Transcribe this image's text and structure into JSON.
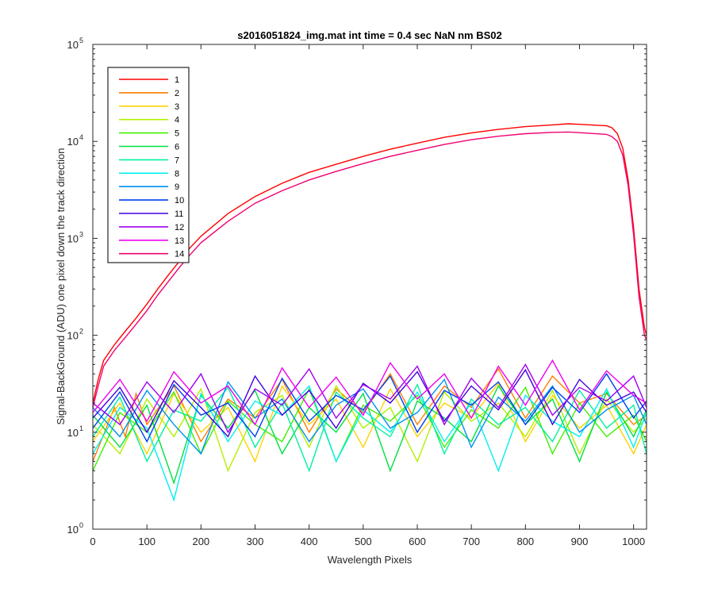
{
  "chart_data": {
    "type": "line",
    "title": "s2016051824_img.mat int time = 0.4 sec  NaN nm BS02",
    "xlabel": "Wavelength Pixels",
    "ylabel": "Signal-BackGround (ADU) one pixel down the track direction",
    "xlim": [
      0,
      1024
    ],
    "ylim": [
      1,
      100000
    ],
    "yscale": "log",
    "grid": false,
    "legend_position": "top-left",
    "x_ticks": [
      0,
      100,
      200,
      300,
      400,
      500,
      600,
      700,
      800,
      900,
      1000
    ],
    "y_ticks": [
      {
        "value": 1,
        "base": "10",
        "exp": "0"
      },
      {
        "value": 10,
        "base": "10",
        "exp": "1"
      },
      {
        "value": 100,
        "base": "10",
        "exp": "2"
      },
      {
        "value": 1000,
        "base": "10",
        "exp": "3"
      },
      {
        "value": 10000,
        "base": "10",
        "exp": "4"
      },
      {
        "value": 100000,
        "base": "10",
        "exp": "5"
      }
    ],
    "series": [
      {
        "name": "1",
        "color": "#ff0000",
        "x": [
          0,
          10,
          20,
          40,
          60,
          80,
          100,
          120,
          140,
          160,
          180,
          200,
          250,
          300,
          350,
          400,
          450,
          500,
          550,
          600,
          650,
          700,
          750,
          800,
          850,
          880,
          900,
          950,
          960,
          970,
          980,
          990,
          1000,
          1010,
          1020,
          1024
        ],
        "y": [
          20,
          35,
          55,
          80,
          110,
          150,
          210,
          300,
          420,
          580,
          800,
          1050,
          1800,
          2700,
          3700,
          4800,
          5800,
          7000,
          8300,
          9600,
          11000,
          12200,
          13300,
          14200,
          14800,
          15200,
          15000,
          14500,
          13800,
          12000,
          8500,
          4000,
          1300,
          300,
          120,
          100
        ]
      },
      {
        "name": "2",
        "color": "#ff7f00",
        "x": [
          0,
          40,
          60,
          80,
          100,
          150,
          200,
          250,
          300,
          350,
          400,
          450,
          500,
          550,
          600,
          650,
          700,
          750,
          800,
          850,
          900,
          950,
          1000,
          1024
        ],
        "y": [
          5,
          18,
          9,
          25,
          12,
          30,
          8,
          22,
          14,
          35,
          10,
          28,
          16,
          40,
          12,
          30,
          18,
          45,
          14,
          38,
          20,
          25,
          12,
          15
        ]
      },
      {
        "name": "3",
        "color": "#ffd200",
        "x": [
          0,
          50,
          100,
          150,
          200,
          250,
          300,
          350,
          400,
          450,
          500,
          550,
          600,
          650,
          700,
          750,
          800,
          850,
          900,
          950,
          1000,
          1024
        ],
        "y": [
          8,
          20,
          6,
          25,
          10,
          18,
          5,
          30,
          12,
          22,
          7,
          28,
          9,
          20,
          14,
          32,
          8,
          24,
          11,
          19,
          6,
          12
        ]
      },
      {
        "name": "4",
        "color": "#b2f000",
        "x": [
          0,
          50,
          100,
          150,
          200,
          250,
          300,
          350,
          400,
          450,
          500,
          550,
          600,
          650,
          700,
          750,
          800,
          850,
          900,
          950,
          1000,
          1024
        ],
        "y": [
          12,
          6,
          22,
          9,
          28,
          4,
          16,
          24,
          7,
          30,
          11,
          18,
          5,
          26,
          13,
          20,
          9,
          27,
          6,
          22,
          10,
          14
        ]
      },
      {
        "name": "5",
        "color": "#40f000",
        "x": [
          0,
          50,
          100,
          150,
          200,
          250,
          300,
          350,
          400,
          450,
          500,
          550,
          600,
          650,
          700,
          750,
          800,
          850,
          900,
          950,
          1000,
          1024
        ],
        "y": [
          4,
          16,
          10,
          26,
          6,
          21,
          12,
          8,
          28,
          5,
          19,
          13,
          24,
          7,
          17,
          11,
          29,
          6,
          20,
          9,
          15,
          8
        ]
      },
      {
        "name": "6",
        "color": "#00e040",
        "x": [
          0,
          50,
          100,
          150,
          200,
          250,
          300,
          350,
          400,
          450,
          500,
          550,
          600,
          650,
          700,
          750,
          800,
          850,
          900,
          950,
          1000,
          1024
        ],
        "y": [
          15,
          7,
          19,
          3,
          24,
          11,
          27,
          6,
          18,
          10,
          25,
          4,
          21,
          14,
          8,
          30,
          12,
          22,
          5,
          26,
          9,
          17
        ]
      },
      {
        "name": "7",
        "color": "#00f0a0",
        "x": [
          0,
          50,
          100,
          150,
          200,
          250,
          300,
          350,
          400,
          450,
          500,
          550,
          600,
          650,
          700,
          750,
          800,
          850,
          900,
          950,
          1000,
          1024
        ],
        "y": [
          9,
          23,
          5,
          17,
          13,
          29,
          7,
          20,
          4,
          26,
          14,
          9,
          31,
          6,
          22,
          12,
          18,
          8,
          27,
          11,
          19,
          6
        ]
      },
      {
        "name": "8",
        "color": "#00f0f0",
        "x": [
          0,
          50,
          100,
          150,
          200,
          250,
          300,
          350,
          400,
          450,
          500,
          550,
          600,
          650,
          700,
          750,
          800,
          850,
          900,
          950,
          1000,
          1024
        ],
        "y": [
          6,
          18,
          11,
          2,
          25,
          8,
          21,
          15,
          30,
          5,
          17,
          10,
          26,
          8,
          20,
          4,
          24,
          13,
          9,
          28,
          7,
          16
        ]
      },
      {
        "name": "9",
        "color": "#0090f0",
        "x": [
          0,
          50,
          100,
          150,
          200,
          250,
          300,
          350,
          400,
          450,
          500,
          550,
          600,
          650,
          700,
          750,
          800,
          850,
          900,
          950,
          1000,
          1024
        ],
        "y": [
          18,
          9,
          27,
          12,
          6,
          33,
          14,
          22,
          8,
          19,
          28,
          11,
          16,
          35,
          7,
          23,
          13,
          30,
          10,
          17,
          24,
          12
        ]
      },
      {
        "name": "10",
        "color": "#0040f0",
        "x": [
          0,
          50,
          100,
          150,
          200,
          250,
          300,
          350,
          400,
          450,
          500,
          550,
          600,
          650,
          700,
          750,
          800,
          850,
          900,
          950,
          1000,
          1024
        ],
        "y": [
          11,
          26,
          8,
          31,
          15,
          20,
          9,
          36,
          13,
          24,
          17,
          38,
          10,
          27,
          19,
          33,
          12,
          29,
          16,
          40,
          14,
          21
        ]
      },
      {
        "name": "11",
        "color": "#4000e0",
        "x": [
          0,
          50,
          100,
          150,
          200,
          250,
          300,
          350,
          400,
          450,
          500,
          550,
          600,
          650,
          700,
          750,
          800,
          850,
          900,
          950,
          1000,
          1024
        ],
        "y": [
          14,
          29,
          10,
          34,
          18,
          9,
          38,
          15,
          27,
          11,
          32,
          20,
          42,
          13,
          30,
          17,
          44,
          12,
          35,
          19,
          26,
          16
        ]
      },
      {
        "name": "12",
        "color": "#a000f0",
        "x": [
          0,
          50,
          100,
          150,
          200,
          250,
          300,
          350,
          400,
          450,
          500,
          550,
          600,
          650,
          700,
          750,
          800,
          850,
          900,
          950,
          1000,
          1024
        ],
        "y": [
          20,
          12,
          33,
          16,
          40,
          10,
          28,
          19,
          45,
          14,
          31,
          22,
          48,
          12,
          36,
          18,
          50,
          15,
          29,
          21,
          38,
          18
        ]
      },
      {
        "name": "13",
        "color": "#f000f0",
        "x": [
          0,
          50,
          100,
          150,
          200,
          250,
          300,
          350,
          400,
          450,
          500,
          550,
          600,
          650,
          700,
          750,
          800,
          850,
          900,
          950,
          1000,
          1024
        ],
        "y": [
          16,
          35,
          13,
          42,
          20,
          30,
          12,
          46,
          18,
          37,
          15,
          52,
          22,
          40,
          14,
          48,
          19,
          55,
          17,
          43,
          24,
          20
        ]
      },
      {
        "name": "14",
        "color": "#f00070",
        "x": [
          0,
          10,
          20,
          40,
          60,
          80,
          100,
          120,
          140,
          160,
          180,
          200,
          250,
          300,
          350,
          400,
          450,
          500,
          550,
          600,
          650,
          700,
          750,
          800,
          850,
          880,
          900,
          950,
          960,
          970,
          980,
          990,
          1000,
          1010,
          1020,
          1024
        ],
        "y": [
          18,
          30,
          48,
          70,
          95,
          130,
          180,
          260,
          360,
          500,
          680,
          900,
          1500,
          2300,
          3100,
          4000,
          4900,
          5900,
          7000,
          8100,
          9300,
          10400,
          11300,
          12000,
          12400,
          12500,
          12300,
          11800,
          11200,
          10000,
          7200,
          3500,
          1100,
          250,
          100,
          90
        ]
      }
    ]
  }
}
